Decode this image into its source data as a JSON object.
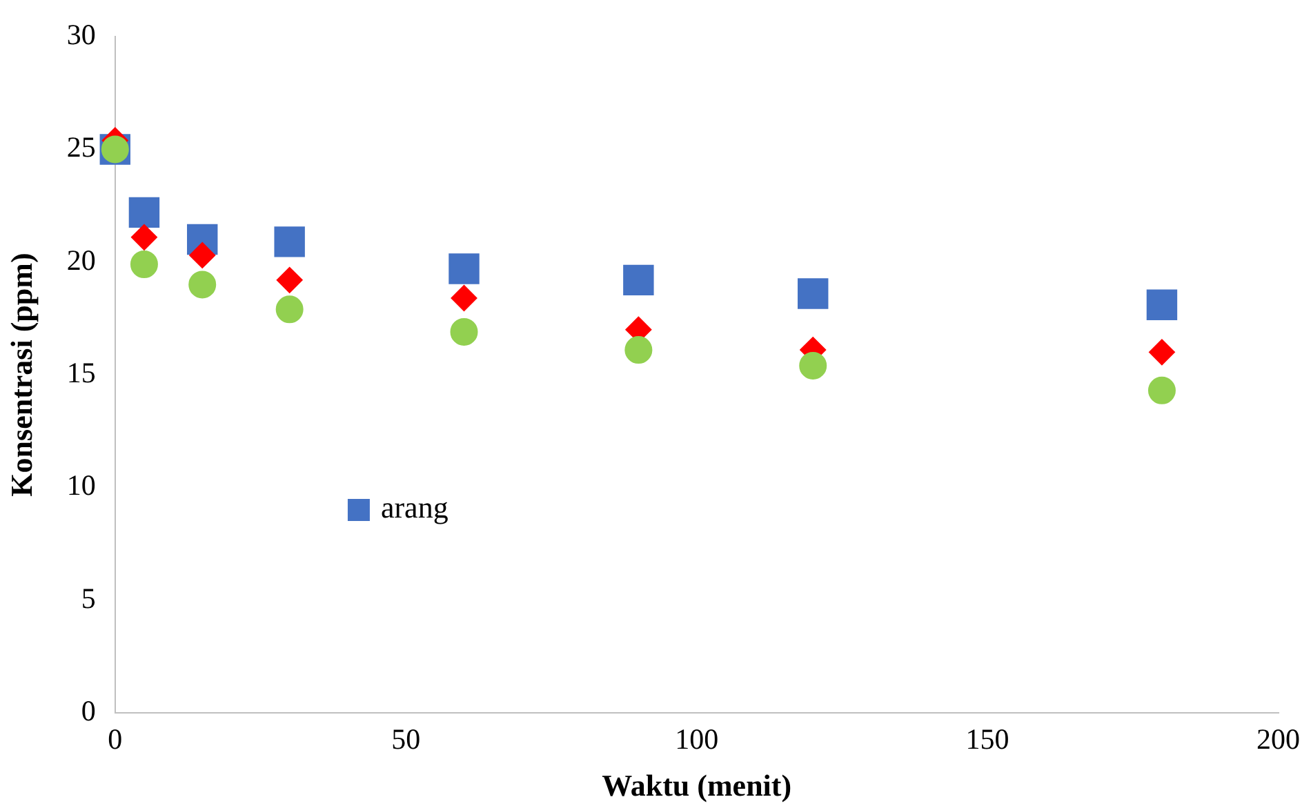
{
  "chart_data": {
    "type": "scatter",
    "xlabel": "Waktu (menit)",
    "ylabel": "Konsentrasi (ppm)",
    "x": [
      0,
      5,
      15,
      30,
      60,
      90,
      120,
      180
    ],
    "xlim": [
      0,
      200
    ],
    "xticks": [
      0,
      50,
      100,
      150,
      200
    ],
    "ylim": [
      0,
      30
    ],
    "yticks": [
      0,
      5,
      10,
      15,
      20,
      25,
      30
    ],
    "grid": false,
    "legend": "left",
    "series": [
      {
        "name": "arang",
        "color": "#4472c4",
        "marker": "square",
        "values": [
          25,
          22.2,
          21.0,
          20.9,
          19.7,
          19.2,
          18.6,
          18.1
        ]
      },
      {
        "color": "#ff0000",
        "marker": "diamond",
        "values": [
          25.4,
          21.1,
          20.3,
          19.2,
          18.4,
          17.0,
          16.1,
          16.0
        ]
      },
      {
        "color": "#92d050",
        "marker": "circle",
        "values": [
          25.0,
          19.9,
          19.0,
          17.9,
          16.9,
          16.1,
          15.4,
          14.3
        ]
      }
    ]
  }
}
